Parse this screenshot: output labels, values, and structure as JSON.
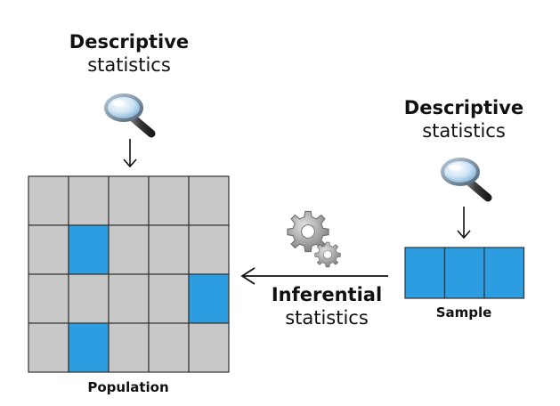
{
  "population": {
    "descriptive": {
      "bold": "Descriptive",
      "normal": "statistics"
    },
    "caption": "Population",
    "grid": {
      "rows": 4,
      "cols": 5,
      "highlighted": [
        [
          1,
          1
        ],
        [
          2,
          4
        ],
        [
          3,
          1
        ]
      ]
    }
  },
  "sample": {
    "descriptive": {
      "bold": "Descriptive",
      "normal": "statistics"
    },
    "caption": "Sample",
    "cells": 3
  },
  "inferential": {
    "bold": "Inferential",
    "normal": "statistics"
  },
  "icons": {
    "population_lens": "magnifying-glass-icon",
    "sample_lens": "magnifying-glass-icon",
    "gears": "gears-icon"
  },
  "colors": {
    "cell_gray": "#c8c8c8",
    "cell_blue": "#2b9de0",
    "border": "#333333",
    "arrow": "#111111"
  }
}
